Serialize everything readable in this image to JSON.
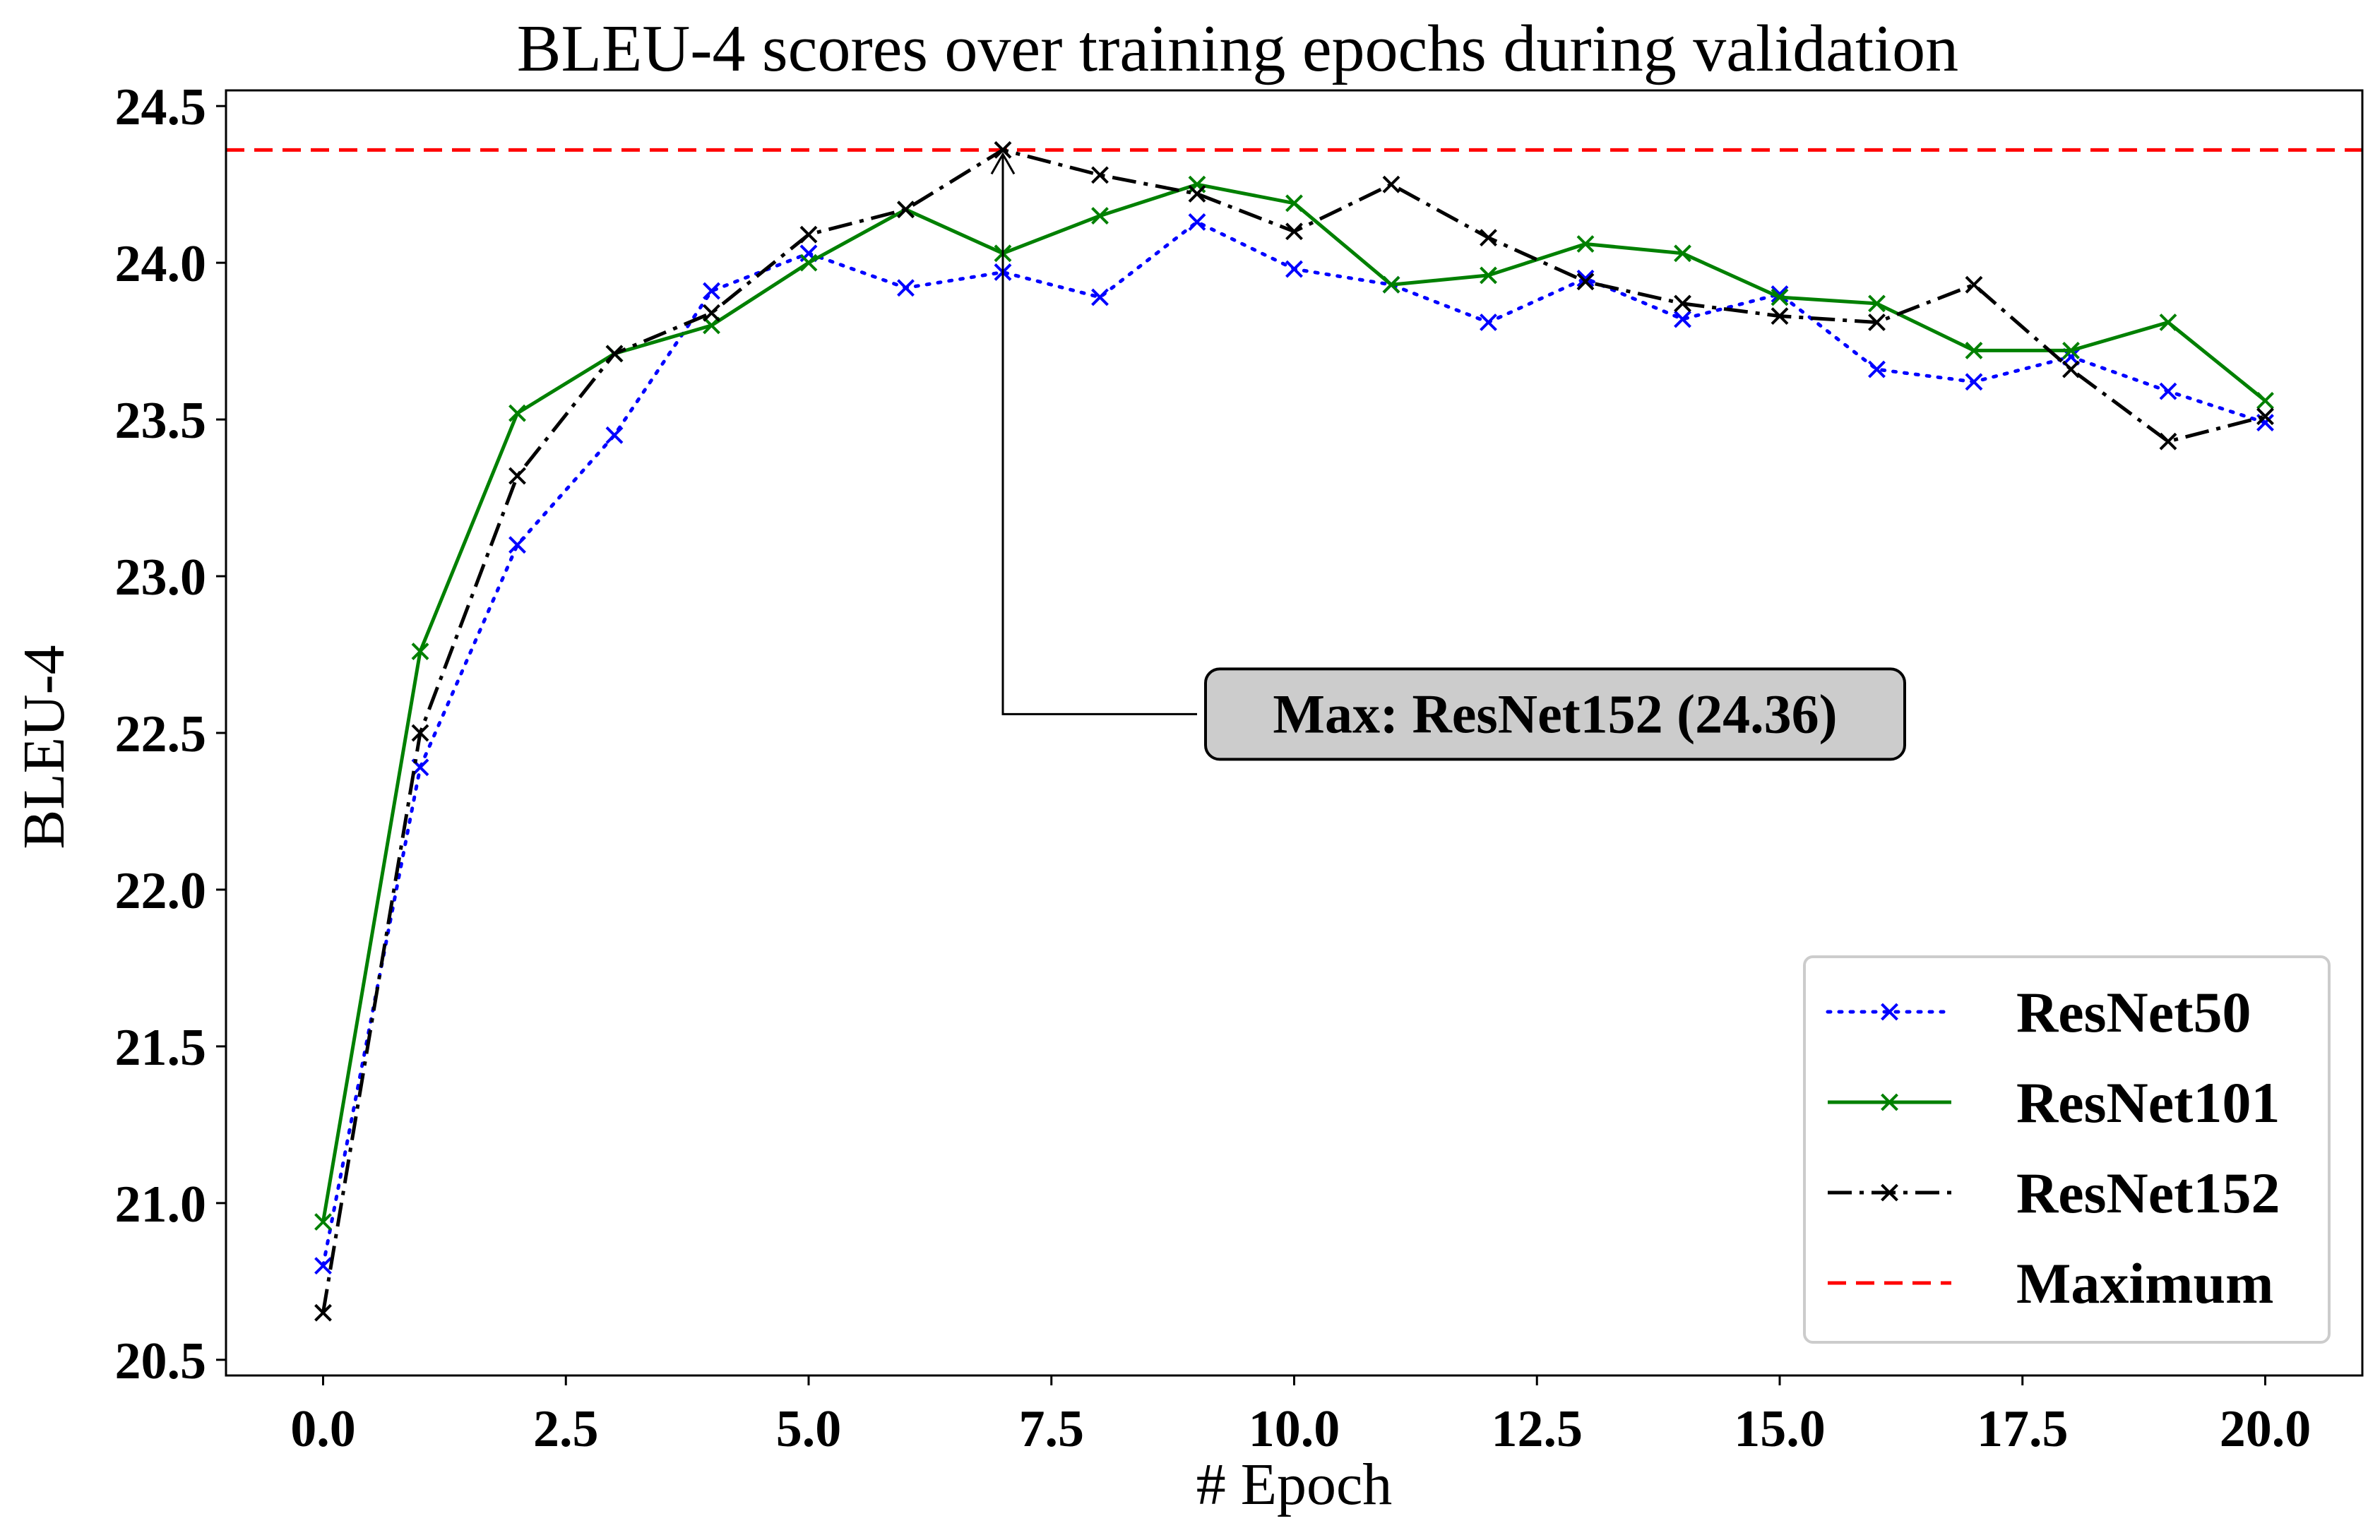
{
  "chart_data": {
    "type": "line",
    "title": "BLEU-4 scores over training epochs during validation",
    "xlabel": "# Epoch",
    "ylabel": "BLEU-4",
    "xlim": [
      -1.0,
      21.0
    ],
    "ylim": [
      20.45,
      24.55
    ],
    "xticks": [
      0.0,
      2.5,
      5.0,
      7.5,
      10.0,
      12.5,
      15.0,
      17.5,
      20.0
    ],
    "xtick_labels": [
      "0.0",
      "2.5",
      "5.0",
      "7.5",
      "10.0",
      "12.5",
      "15.0",
      "17.5",
      "20.0"
    ],
    "yticks": [
      20.5,
      21.0,
      21.5,
      22.0,
      22.5,
      23.0,
      23.5,
      24.0,
      24.5
    ],
    "ytick_labels": [
      "20.5",
      "21.0",
      "21.5",
      "22.0",
      "22.5",
      "23.0",
      "23.5",
      "24.0",
      "24.5"
    ],
    "grid": false,
    "legend_position": "bottom-right",
    "x": [
      0,
      1,
      2,
      3,
      4,
      5,
      6,
      7,
      8,
      9,
      10,
      11,
      12,
      13,
      14,
      15,
      16,
      17,
      18,
      19,
      20
    ],
    "series": [
      {
        "name": "ResNet50",
        "color": "#0000ff",
        "line_style": "dotted",
        "marker": "x",
        "values": [
          20.8,
          22.39,
          23.1,
          23.45,
          23.91,
          24.03,
          23.92,
          23.97,
          23.89,
          24.13,
          23.98,
          23.93,
          23.81,
          23.95,
          23.82,
          23.9,
          23.66,
          23.62,
          23.7,
          23.59,
          23.49
        ]
      },
      {
        "name": "ResNet101",
        "color": "#008000",
        "line_style": "solid",
        "marker": "x",
        "values": [
          20.94,
          22.76,
          23.52,
          23.71,
          23.8,
          24.0,
          24.17,
          24.03,
          24.15,
          24.25,
          24.19,
          23.93,
          23.96,
          24.06,
          24.03,
          23.89,
          23.87,
          23.72,
          23.72,
          23.81,
          23.56
        ]
      },
      {
        "name": "ResNet152",
        "color": "#000000",
        "line_style": "dashdot",
        "marker": "x",
        "values": [
          20.65,
          22.5,
          23.32,
          23.71,
          23.84,
          24.09,
          24.17,
          24.36,
          24.28,
          24.22,
          24.1,
          24.25,
          24.08,
          23.94,
          23.87,
          23.83,
          23.81,
          23.93,
          23.66,
          23.43,
          23.51
        ]
      }
    ],
    "reference_line": {
      "name": "Maximum",
      "color": "#ff0000",
      "line_style": "dashed",
      "y": 24.36
    },
    "annotation": {
      "text": "Max: ResNet152 (24.36)",
      "point": [
        7,
        24.36
      ],
      "text_anchor": [
        9.0,
        22.56
      ],
      "box_color": "#cccccc"
    }
  }
}
